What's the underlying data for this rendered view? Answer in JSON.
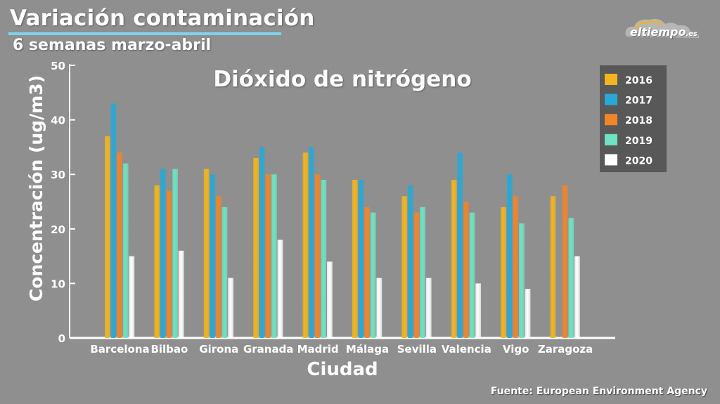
{
  "header": {
    "title": "Variación contaminación",
    "subtitle": "6 semanas marzo-abril"
  },
  "brand": {
    "name": "eltiempo",
    "suffix": ".es"
  },
  "source": "Fuente: European Environment Agency",
  "colors": {
    "accent_line": "#7fd3e8",
    "background": "#8f8f8f",
    "legend_bg": "#585858"
  },
  "chart_data": {
    "type": "bar",
    "title": "Dióxido de nitrógeno",
    "xlabel": "Ciudad",
    "ylabel": "Concentración (ug/m3)",
    "ylim": [
      0,
      50
    ],
    "yticks": [
      0,
      10,
      20,
      30,
      40,
      50
    ],
    "grid": false,
    "legend_position": "top-right",
    "categories": [
      "Barcelona",
      "Bilbao",
      "Girona",
      "Granada",
      "Madrid",
      "Málaga",
      "Sevilla",
      "Valencia",
      "Vigo",
      "Zaragoza"
    ],
    "series": [
      {
        "name": "2016",
        "color": "#f2b51d",
        "values": [
          37,
          28,
          31,
          33,
          34,
          29,
          26,
          29,
          24,
          26
        ]
      },
      {
        "name": "2017",
        "color": "#27a9d6",
        "values": [
          43,
          31,
          30,
          35,
          35,
          29,
          28,
          34,
          30,
          0
        ]
      },
      {
        "name": "2018",
        "color": "#f0852a",
        "values": [
          34,
          27,
          26,
          30,
          30,
          24,
          23,
          25,
          26,
          28
        ]
      },
      {
        "name": "2019",
        "color": "#6fe3c3",
        "values": [
          32,
          31,
          24,
          30,
          29,
          23,
          24,
          23,
          21,
          22
        ]
      },
      {
        "name": "2020",
        "color": "#ffffff",
        "values": [
          15,
          16,
          11,
          18,
          14,
          11,
          11,
          10,
          9,
          15
        ]
      }
    ]
  }
}
